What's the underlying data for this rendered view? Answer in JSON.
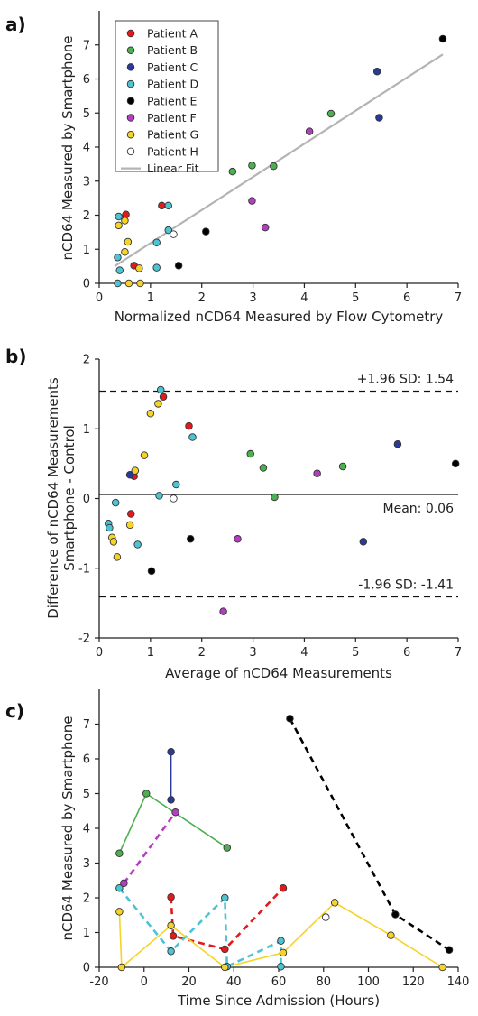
{
  "chart_data": [
    {
      "panel": "a)",
      "type": "scatter",
      "xlabel": "Normalized nCD64 Measured by Flow Cytometry",
      "ylabel": "nCD64 Measured by Smartphone",
      "xlim": [
        0,
        7
      ],
      "ylim": [
        0,
        8
      ],
      "xticks": [
        0,
        1,
        2,
        3,
        4,
        5,
        6,
        7
      ],
      "yticks": [
        0,
        1,
        2,
        3,
        4,
        5,
        6,
        7
      ],
      "legend_position": "top-left",
      "series": [
        {
          "name": "Patient A",
          "color": "#e31a1c",
          "points": [
            [
              0.52,
              2.02
            ],
            [
              0.68,
              0.52
            ],
            [
              1.22,
              2.28
            ]
          ]
        },
        {
          "name": "Patient B",
          "color": "#4caf50",
          "points": [
            [
              2.6,
              3.28
            ],
            [
              2.98,
              3.46
            ],
            [
              3.4,
              3.44
            ],
            [
              4.52,
              4.98
            ]
          ]
        },
        {
          "name": "Patient C",
          "color": "#283a9a",
          "points": [
            [
              5.42,
              6.22
            ],
            [
              5.46,
              4.86
            ]
          ]
        },
        {
          "name": "Patient D",
          "color": "#4dc3d3",
          "points": [
            [
              0.38,
              1.96
            ],
            [
              0.36,
              0.76
            ],
            [
              0.4,
              0.38
            ],
            [
              0.36,
              0.0
            ],
            [
              1.12,
              1.2
            ],
            [
              1.12,
              0.46
            ],
            [
              1.35,
              2.28
            ],
            [
              1.35,
              1.56
            ]
          ]
        },
        {
          "name": "Patient E",
          "color": "#000000",
          "points": [
            [
              1.55,
              0.52
            ],
            [
              2.08,
              1.52
            ],
            [
              6.7,
              7.18
            ]
          ]
        },
        {
          "name": "Patient F",
          "color": "#b43ec2",
          "points": [
            [
              2.98,
              2.42
            ],
            [
              3.24,
              1.64
            ],
            [
              4.1,
              4.46
            ]
          ]
        },
        {
          "name": "Patient G",
          "color": "#f5d328",
          "points": [
            [
              0.38,
              1.7
            ],
            [
              0.5,
              1.84
            ],
            [
              0.56,
              1.22
            ],
            [
              0.5,
              0.92
            ],
            [
              0.78,
              0.44
            ],
            [
              0.8,
              0.0
            ],
            [
              0.58,
              0.0
            ]
          ]
        },
        {
          "name": "Patient H",
          "color": "#ffffff",
          "points": [
            [
              1.45,
              1.44
            ]
          ]
        }
      ],
      "fit": {
        "name": "Linear Fit",
        "color": "#b4b4b4",
        "x": [
          0.3,
          6.7
        ],
        "y": [
          0.5,
          6.72
        ]
      }
    },
    {
      "panel": "b)",
      "type": "scatter",
      "xlabel": "Average of nCD64 Measurements",
      "ylabel": "Difference of nCD64 Measurements Smartphone - Control",
      "ylabel_lines": [
        "Difference of nCD64 Measurements",
        "Smartphone - Control"
      ],
      "xlim": [
        0,
        7
      ],
      "ylim": [
        -2,
        2
      ],
      "xticks": [
        0,
        1,
        2,
        3,
        4,
        5,
        6,
        7
      ],
      "yticks": [
        -2,
        -1,
        0,
        1,
        2
      ],
      "mean": 0.06,
      "upper_limit": 1.54,
      "lower_limit": -1.41,
      "mean_label": "Mean: 0.06",
      "upper_label": "+1.96 SD: 1.54",
      "lower_label": "-1.96 SD: -1.41",
      "series": [
        {
          "name": "Patient A",
          "color": "#e31a1c",
          "points": [
            [
              0.68,
              0.32
            ],
            [
              0.62,
              -0.22
            ],
            [
              1.25,
              1.46
            ],
            [
              1.75,
              1.04
            ]
          ]
        },
        {
          "name": "Patient B",
          "color": "#4caf50",
          "points": [
            [
              2.95,
              0.64
            ],
            [
              3.2,
              0.44
            ],
            [
              3.42,
              0.02
            ],
            [
              4.75,
              0.46
            ]
          ]
        },
        {
          "name": "Patient C",
          "color": "#283a9a",
          "points": [
            [
              0.6,
              0.34
            ],
            [
              5.15,
              -0.62
            ],
            [
              5.82,
              0.78
            ]
          ]
        },
        {
          "name": "Patient D",
          "color": "#4dc3d3",
          "points": [
            [
              0.18,
              -0.36
            ],
            [
              0.2,
              -0.42
            ],
            [
              0.32,
              -0.06
            ],
            [
              0.75,
              -0.66
            ],
            [
              1.2,
              1.56
            ],
            [
              1.17,
              0.04
            ],
            [
              1.82,
              0.88
            ],
            [
              1.5,
              0.2
            ]
          ]
        },
        {
          "name": "Patient E",
          "color": "#000000",
          "points": [
            [
              1.02,
              -1.04
            ],
            [
              1.78,
              -0.58
            ],
            [
              6.95,
              0.5
            ]
          ]
        },
        {
          "name": "Patient F",
          "color": "#b43ec2",
          "points": [
            [
              2.42,
              -1.62
            ],
            [
              2.7,
              -0.58
            ],
            [
              4.25,
              0.36
            ]
          ]
        },
        {
          "name": "Patient G",
          "color": "#f5d328",
          "points": [
            [
              0.25,
              -0.56
            ],
            [
              0.28,
              -0.62
            ],
            [
              0.35,
              -0.84
            ],
            [
              0.6,
              -0.38
            ],
            [
              0.7,
              0.4
            ],
            [
              0.88,
              0.62
            ],
            [
              1.0,
              1.22
            ],
            [
              1.15,
              1.36
            ]
          ]
        },
        {
          "name": "Patient H",
          "color": "#ffffff",
          "points": [
            [
              1.45,
              0.0
            ]
          ]
        }
      ]
    },
    {
      "panel": "c)",
      "type": "line",
      "xlabel": "Time Since Admission (Hours)",
      "ylabel": "nCD64 Measured by Smartphone",
      "xlim": [
        -20,
        140
      ],
      "ylim": [
        0,
        8
      ],
      "xticks": [
        -20,
        0,
        20,
        40,
        60,
        80,
        100,
        120,
        140
      ],
      "yticks": [
        0,
        1,
        2,
        3,
        4,
        5,
        6,
        7
      ],
      "series": [
        {
          "name": "Patient A",
          "color": "#e31a1c",
          "dashed": true,
          "points": [
            [
              12,
              2.02
            ],
            [
              13,
              0.9
            ],
            [
              36,
              0.52
            ],
            [
              62,
              2.28
            ]
          ]
        },
        {
          "name": "Patient B",
          "color": "#4caf50",
          "dashed": false,
          "points": [
            [
              -11,
              3.28
            ],
            [
              1,
              5.0
            ],
            [
              37,
              3.44
            ]
          ]
        },
        {
          "name": "Patient C",
          "color": "#283a9a",
          "dashed": false,
          "points": [
            [
              12,
              6.2
            ],
            [
              12,
              4.82
            ]
          ]
        },
        {
          "name": "Patient D",
          "color": "#4dc3d3",
          "dashed": true,
          "points": [
            [
              -11,
              2.28
            ],
            [
              12,
              0.46
            ],
            [
              36,
              2.0
            ],
            [
              37,
              0.02
            ],
            [
              61,
              0.76
            ],
            [
              61,
              0.02
            ]
          ]
        },
        {
          "name": "Patient E",
          "color": "#000000",
          "dashed": true,
          "points": [
            [
              65,
              7.16
            ],
            [
              112,
              1.52
            ],
            [
              136,
              0.5
            ]
          ]
        },
        {
          "name": "Patient F",
          "color": "#b43ec2",
          "dashed": true,
          "points": [
            [
              -9,
              2.42
            ],
            [
              14,
              4.46
            ]
          ]
        },
        {
          "name": "Patient G",
          "color": "#f5d328",
          "dashed": false,
          "points": [
            [
              -11,
              1.6
            ],
            [
              -10,
              0.0
            ],
            [
              12,
              1.2
            ],
            [
              36,
              0.0
            ],
            [
              62,
              0.42
            ],
            [
              85,
              1.86
            ],
            [
              110,
              0.92
            ],
            [
              133,
              0.0
            ]
          ]
        },
        {
          "name": "Patient H",
          "color": "#ffffff",
          "dashed": false,
          "points": [
            [
              81,
              1.44
            ]
          ]
        }
      ]
    }
  ]
}
